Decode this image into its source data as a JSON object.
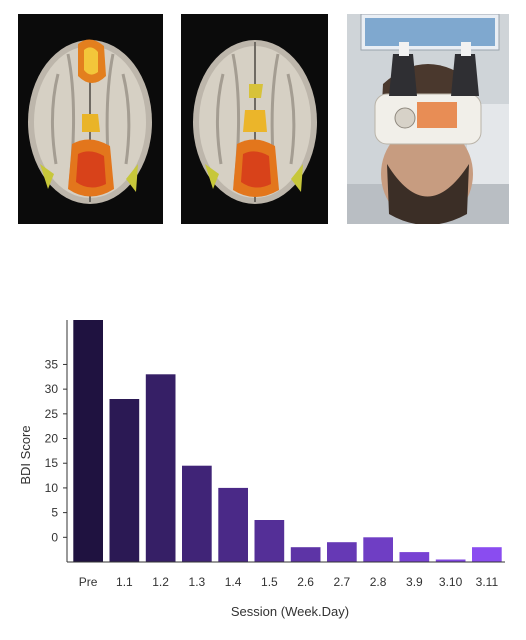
{
  "images": [
    {
      "name": "brain-scan-1",
      "kind": "fMRI axial slice with activation"
    },
    {
      "name": "brain-scan-2",
      "kind": "fMRI axial slice with activation"
    },
    {
      "name": "tms-photo",
      "kind": "photo of man wearing TMS coil headset"
    }
  ],
  "colors": {
    "bar_start": "#1f1240",
    "bar_end": "#8a4cf0",
    "axis": "#333333",
    "activation_hot": "#f0a020",
    "activation_red": "#d83818"
  },
  "chart_data": {
    "type": "bar",
    "title": "",
    "xlabel": "Session (Week.Day)",
    "ylabel": "BDI Score",
    "categories": [
      "Pre",
      "1.1",
      "1.2",
      "1.3",
      "1.4",
      "1.5",
      "2.6",
      "2.7",
      "2.8",
      "3.9",
      "3.10",
      "3.11"
    ],
    "values": [
      44,
      28,
      33,
      14.5,
      10,
      3.5,
      -2,
      -1,
      0,
      -3,
      -4.5,
      -2
    ],
    "yticks": [
      0,
      5,
      10,
      15,
      20,
      25,
      30,
      35
    ],
    "ylim": [
      -5,
      44
    ],
    "grid": false,
    "legend": "none"
  }
}
